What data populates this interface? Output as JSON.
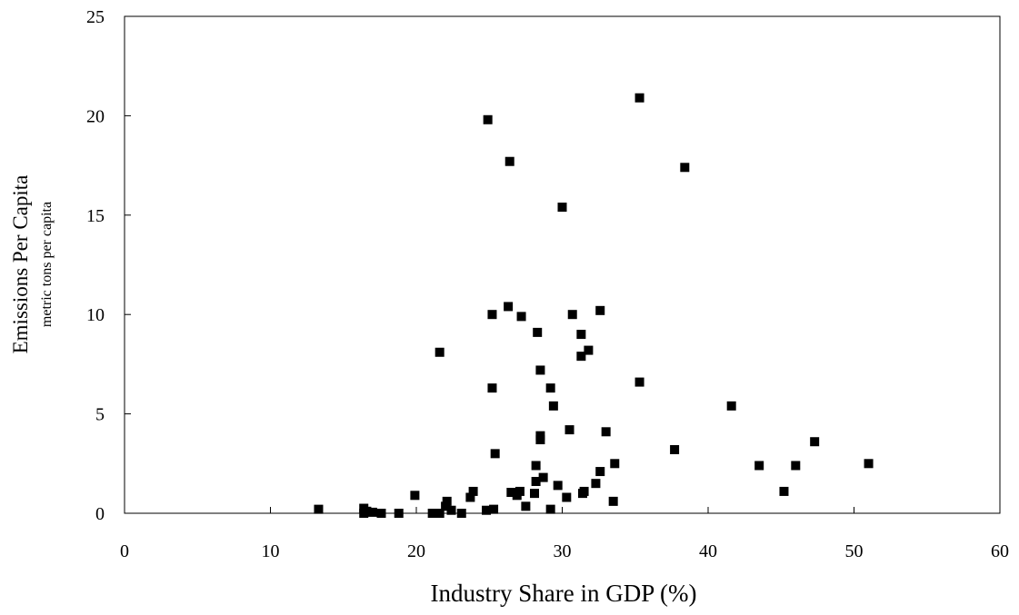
{
  "chart_data": {
    "type": "scatter",
    "xlabel": "Industry Share in GDP (%)",
    "ylabel": "Emissions Per Capita",
    "ylabel_units": "metric tons per capita",
    "color": "#000000",
    "xlim": [
      0,
      60
    ],
    "xticks": [
      0,
      10,
      20,
      30,
      40,
      50,
      60
    ],
    "ylim": [
      0,
      25
    ],
    "yticks": [
      0,
      5,
      10,
      15,
      20,
      25
    ],
    "x": [
      35.3,
      24.9,
      26.4,
      38.4,
      30.0,
      26.3,
      32.6,
      25.2,
      27.2,
      30.7,
      28.3,
      31.3,
      21.6,
      31.8,
      31.3,
      28.5,
      35.3,
      25.2,
      29.2,
      29.4,
      41.6,
      30.5,
      33.0,
      28.5,
      28.5,
      37.7,
      47.3,
      43.5,
      46.0,
      51.0,
      45.2,
      25.4,
      33.6,
      28.2,
      32.6,
      28.2,
      28.7,
      32.3,
      29.7,
      23.9,
      23.7,
      26.5,
      27.1,
      26.9,
      28.1,
      31.4,
      31.5,
      30.3,
      33.5,
      19.9,
      22.1,
      22.0,
      27.5,
      13.3,
      16.4,
      16.6,
      17.0,
      17.6,
      18.8,
      21.1,
      21.6,
      22.4,
      23.1,
      24.8,
      25.3,
      29.2,
      16.4
    ],
    "values": [
      20.9,
      19.8,
      17.7,
      17.4,
      15.4,
      10.4,
      10.2,
      10.0,
      9.9,
      10.0,
      9.1,
      9.0,
      8.1,
      8.2,
      7.9,
      7.2,
      6.6,
      6.3,
      6.3,
      5.4,
      5.4,
      4.2,
      4.1,
      3.9,
      3.7,
      3.2,
      3.6,
      2.4,
      2.4,
      2.5,
      1.1,
      3.0,
      2.5,
      2.4,
      2.1,
      1.6,
      1.8,
      1.5,
      1.4,
      1.1,
      0.8,
      1.05,
      1.1,
      0.9,
      1.0,
      1.0,
      1.1,
      0.8,
      0.6,
      0.9,
      0.6,
      0.35,
      0.35,
      0.2,
      0.25,
      0.1,
      0.05,
      0.0,
      0.0,
      0.0,
      0.0,
      0.15,
      0.0,
      0.15,
      0.2,
      0.2,
      0.0
    ]
  }
}
